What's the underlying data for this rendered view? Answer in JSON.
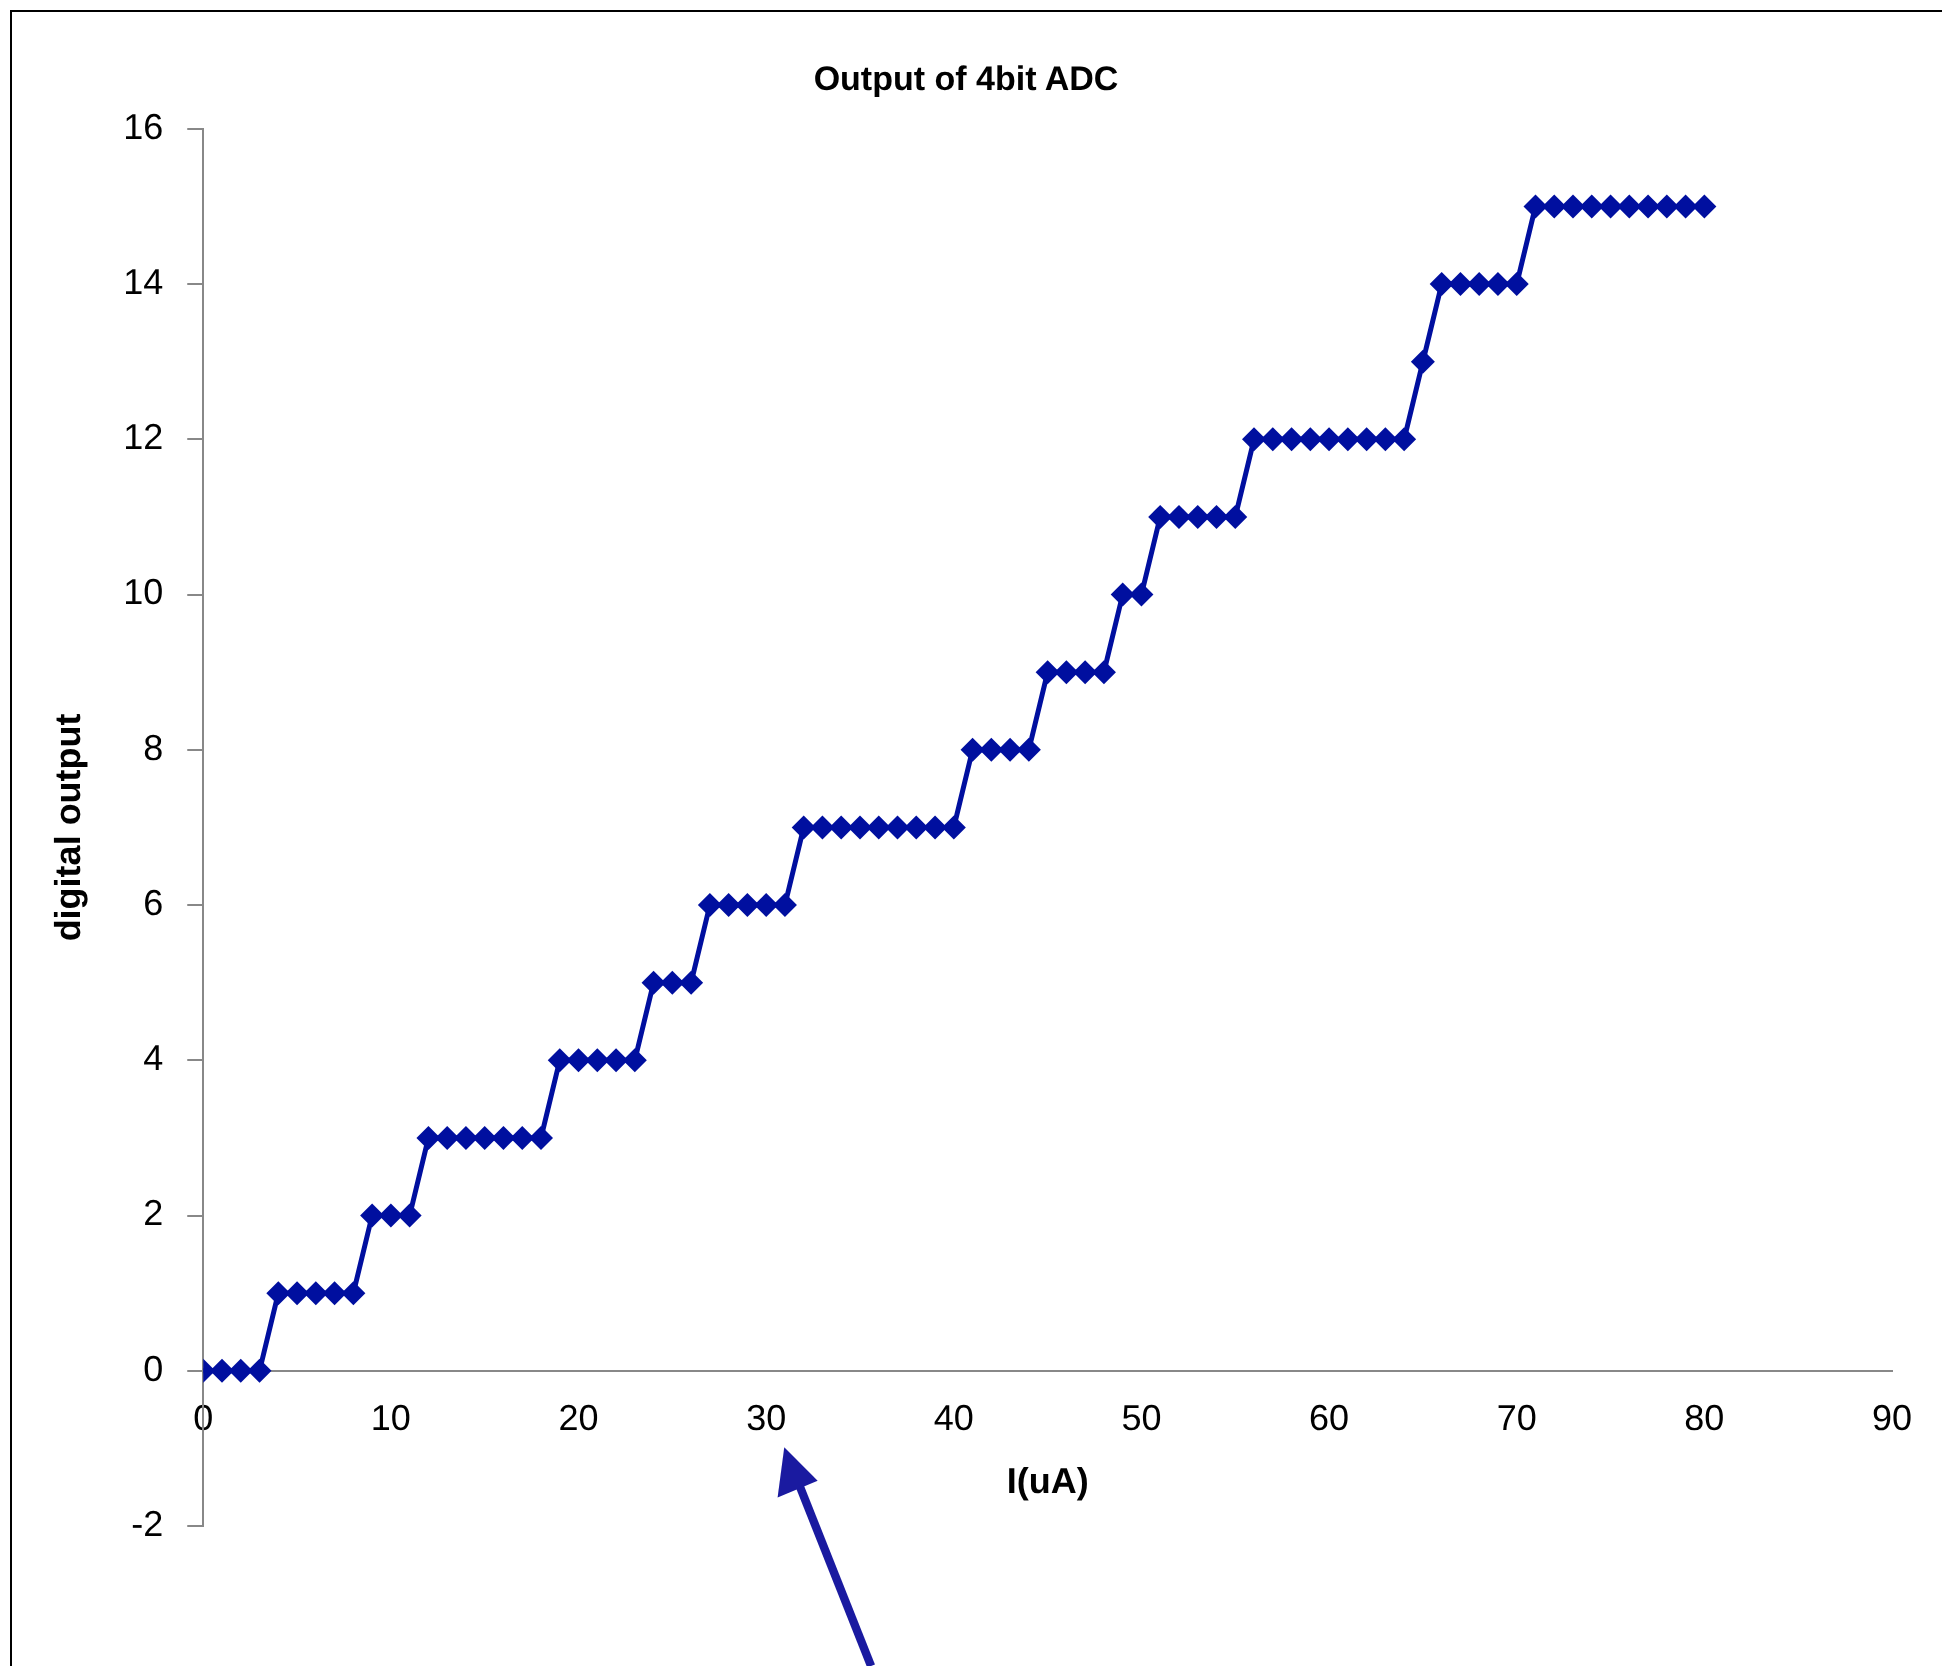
{
  "chart_data": {
    "type": "line",
    "title": "Output of 4bit ADC",
    "xlabel": "I(uA)",
    "ylabel": "digital output",
    "x": [
      0,
      1,
      2,
      3,
      4,
      5,
      6,
      7,
      8,
      9,
      10,
      11,
      12,
      13,
      14,
      15,
      16,
      17,
      18,
      19,
      20,
      21,
      22,
      23,
      24,
      25,
      26,
      27,
      28,
      29,
      30,
      31,
      32,
      33,
      34,
      35,
      36,
      37,
      38,
      39,
      40,
      41,
      42,
      43,
      44,
      45,
      46,
      47,
      48,
      49,
      50,
      51,
      52,
      53,
      54,
      55,
      56,
      57,
      58,
      59,
      60,
      61,
      62,
      63,
      64,
      65,
      66,
      67,
      68,
      69,
      70,
      71,
      72,
      73,
      74,
      75,
      76,
      77,
      78,
      79,
      80
    ],
    "series": [
      {
        "color": "#000f9f",
        "values": [
          0,
          0,
          0,
          0,
          1,
          1,
          1,
          1,
          1,
          2,
          2,
          2,
          3,
          3,
          3,
          3,
          3,
          3,
          3,
          4,
          4,
          4,
          4,
          4,
          5,
          5,
          5,
          6,
          6,
          6,
          6,
          6,
          7,
          7,
          7,
          7,
          7,
          7,
          7,
          7,
          7,
          8,
          8,
          8,
          8,
          9,
          9,
          9,
          9,
          10,
          10,
          11,
          11,
          11,
          11,
          11,
          12,
          12,
          12,
          12,
          12,
          12,
          12,
          12,
          12,
          13,
          14,
          14,
          14,
          14,
          14,
          15,
          15,
          15,
          15,
          15,
          15,
          15,
          15,
          15,
          15
        ]
      }
    ],
    "xlim": [
      0,
      90
    ],
    "xticks": [
      0,
      10,
      20,
      30,
      40,
      50,
      60,
      70,
      80,
      90
    ],
    "ylim": [
      -2,
      16
    ],
    "yticks": [
      -2,
      0,
      2,
      4,
      6,
      8,
      10,
      12,
      14,
      16
    ],
    "grid": false,
    "marker": "diamond",
    "line_style": "solid"
  }
}
